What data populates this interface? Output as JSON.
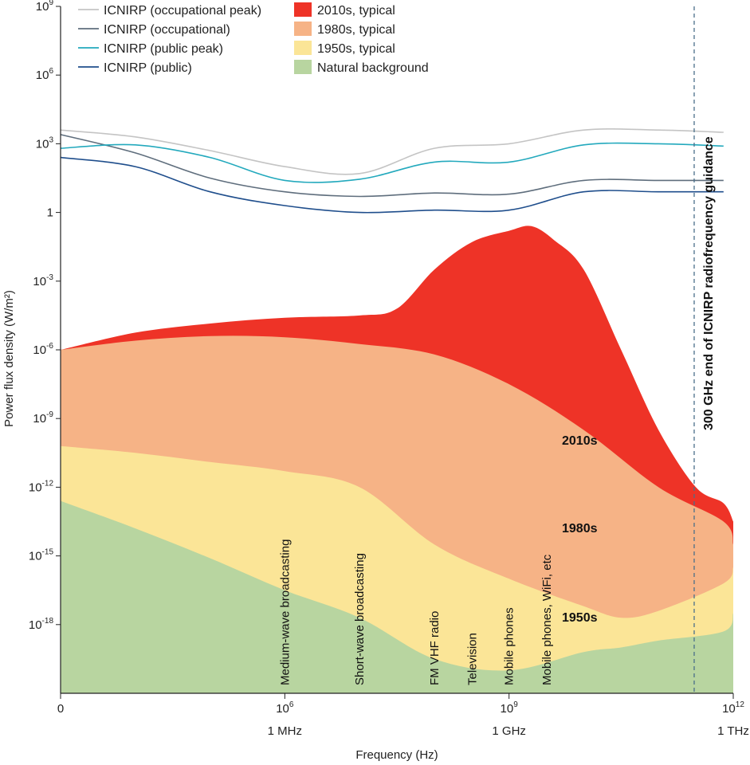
{
  "chart_data": {
    "type": "area",
    "xlabel": "Frequency (Hz)",
    "ylabel": "Power flux density (W/m²)",
    "x_scale": "log",
    "y_scale": "log",
    "xlim": [
      1000,
      1000000000000.0
    ],
    "ylim": [
      1e-21,
      1000000000.0
    ],
    "x_ticks": [
      {
        "value": 1000,
        "label": "0",
        "sublabel": ""
      },
      {
        "value": 1000000.0,
        "base": "10",
        "exp": "6",
        "sublabel": "1 MHz"
      },
      {
        "value": 1000000000.0,
        "base": "10",
        "exp": "9",
        "sublabel": "1 GHz"
      },
      {
        "value": 1000000000000.0,
        "base": "10",
        "exp": "12",
        "sublabel": "1 THz"
      }
    ],
    "y_ticks": [
      {
        "value": 1000000000.0,
        "base": "10",
        "exp": "9"
      },
      {
        "value": 1000000.0,
        "base": "10",
        "exp": "6"
      },
      {
        "value": 1000.0,
        "base": "10",
        "exp": "3"
      },
      {
        "value": 1,
        "base": "1",
        "exp": ""
      },
      {
        "value": 0.001,
        "base": "10",
        "exp": "-3"
      },
      {
        "value": 1e-06,
        "base": "10",
        "exp": "-6"
      },
      {
        "value": 1e-09,
        "base": "10",
        "exp": "-9"
      },
      {
        "value": 1e-12,
        "base": "10",
        "exp": "-12"
      },
      {
        "value": 1e-15,
        "base": "10",
        "exp": "-15"
      },
      {
        "value": 1e-18,
        "base": "10",
        "exp": "-18"
      }
    ],
    "areas": [
      {
        "name": "2010s, typical",
        "band_label": "2010s",
        "color": "#ee3327",
        "points": [
          [
            3,
            -6
          ],
          [
            4,
            -5.25
          ],
          [
            5,
            -4.85
          ],
          [
            6,
            -4.6
          ],
          [
            7,
            -4.5
          ],
          [
            7.5,
            -4.2
          ],
          [
            8,
            -2.5
          ],
          [
            8.5,
            -1.3
          ],
          [
            9,
            -0.8
          ],
          [
            9.3,
            -0.6
          ],
          [
            9.6,
            -1.2
          ],
          [
            10,
            -2.5
          ],
          [
            10.5,
            -6
          ],
          [
            11,
            -9.5
          ],
          [
            11.5,
            -12
          ],
          [
            11.87,
            -12.7
          ],
          [
            12,
            -13.5
          ]
        ]
      },
      {
        "name": "1980s, typical",
        "band_label": "1980s",
        "color": "#f6b386",
        "points": [
          [
            3,
            -6
          ],
          [
            4,
            -5.6
          ],
          [
            5,
            -5.4
          ],
          [
            6,
            -5.45
          ],
          [
            7,
            -5.75
          ],
          [
            8,
            -6.2
          ],
          [
            9,
            -7.5
          ],
          [
            10,
            -9.5
          ],
          [
            11,
            -12
          ],
          [
            11.87,
            -13.5
          ],
          [
            12,
            -14.5
          ]
        ]
      },
      {
        "name": "1950s, typical",
        "band_label": "1950s",
        "color": "#fbe597",
        "points": [
          [
            3,
            -10.2
          ],
          [
            4,
            -10.5
          ],
          [
            5,
            -10.9
          ],
          [
            6,
            -11.3
          ],
          [
            7,
            -12
          ],
          [
            8,
            -14.5
          ],
          [
            9,
            -16
          ],
          [
            10,
            -17.2
          ],
          [
            10.5,
            -17.7
          ],
          [
            11,
            -17.4
          ],
          [
            11.87,
            -16.2
          ],
          [
            12,
            -15.5
          ]
        ]
      },
      {
        "name": "Natural background",
        "band_label": "",
        "color": "#b8d5a0",
        "points": [
          [
            3,
            -12.6
          ],
          [
            4,
            -13.8
          ],
          [
            5,
            -15.1
          ],
          [
            6,
            -16.5
          ],
          [
            7,
            -17.7
          ],
          [
            8,
            -19.5
          ],
          [
            9,
            -20
          ],
          [
            10,
            -19.2
          ],
          [
            10.5,
            -19.0
          ],
          [
            11,
            -18.7
          ],
          [
            11.87,
            -18.3
          ],
          [
            12,
            -17.5
          ]
        ]
      }
    ],
    "series": [
      {
        "name": "ICNIRP (occupational peak)",
        "color": "#c4c4c4",
        "points": [
          [
            3,
            3.6
          ],
          [
            4,
            3.3
          ],
          [
            5,
            2.7
          ],
          [
            6,
            2.0
          ],
          [
            7,
            1.7
          ],
          [
            8,
            2.8
          ],
          [
            9,
            3.0
          ],
          [
            10,
            3.6
          ],
          [
            11,
            3.6
          ],
          [
            11.87,
            3.5
          ]
        ]
      },
      {
        "name": "ICNIRP (occupational)",
        "color": "#5f6e7d",
        "points": [
          [
            3,
            3.4
          ],
          [
            4,
            2.6
          ],
          [
            5,
            1.5
          ],
          [
            6,
            0.9
          ],
          [
            7,
            0.7
          ],
          [
            8,
            0.85
          ],
          [
            9,
            0.8
          ],
          [
            10,
            1.4
          ],
          [
            11,
            1.4
          ],
          [
            11.87,
            1.4
          ]
        ]
      },
      {
        "name": "ICNIRP (public peak)",
        "color": "#23a9bd",
        "points": [
          [
            3,
            2.8
          ],
          [
            4,
            2.95
          ],
          [
            5,
            2.4
          ],
          [
            6,
            1.4
          ],
          [
            7,
            1.45
          ],
          [
            8,
            2.2
          ],
          [
            9,
            2.2
          ],
          [
            10,
            2.95
          ],
          [
            11,
            3.0
          ],
          [
            11.87,
            2.9
          ]
        ]
      },
      {
        "name": "ICNIRP (public)",
        "color": "#1f4e8c",
        "points": [
          [
            3,
            2.4
          ],
          [
            4,
            2.0
          ],
          [
            5,
            0.9
          ],
          [
            6,
            0.3
          ],
          [
            7,
            0
          ],
          [
            8,
            0.1
          ],
          [
            9,
            0.1
          ],
          [
            10,
            0.9
          ],
          [
            11,
            0.9
          ],
          [
            11.87,
            0.9
          ]
        ]
      }
    ],
    "legend_placement": "top-left",
    "annotations": [
      {
        "text": "Medium-wave broadcasting",
        "x": 1000000.0
      },
      {
        "text": "Short-wave broadcasting",
        "x": 10000000.0
      },
      {
        "text": "FM VHF radio",
        "x": 100000000.0
      },
      {
        "text": "Television",
        "x": 320000000.0
      },
      {
        "text": "Mobile phones",
        "x": 1000000000.0
      },
      {
        "text": "Mobile phones, WiFi, etc",
        "x": 3200000000.0
      }
    ],
    "guide_line": {
      "x": 300000000000.0,
      "text": "300 GHz end of ICNIRP radiofrequency guidance",
      "color": "#4a6f8a"
    }
  }
}
